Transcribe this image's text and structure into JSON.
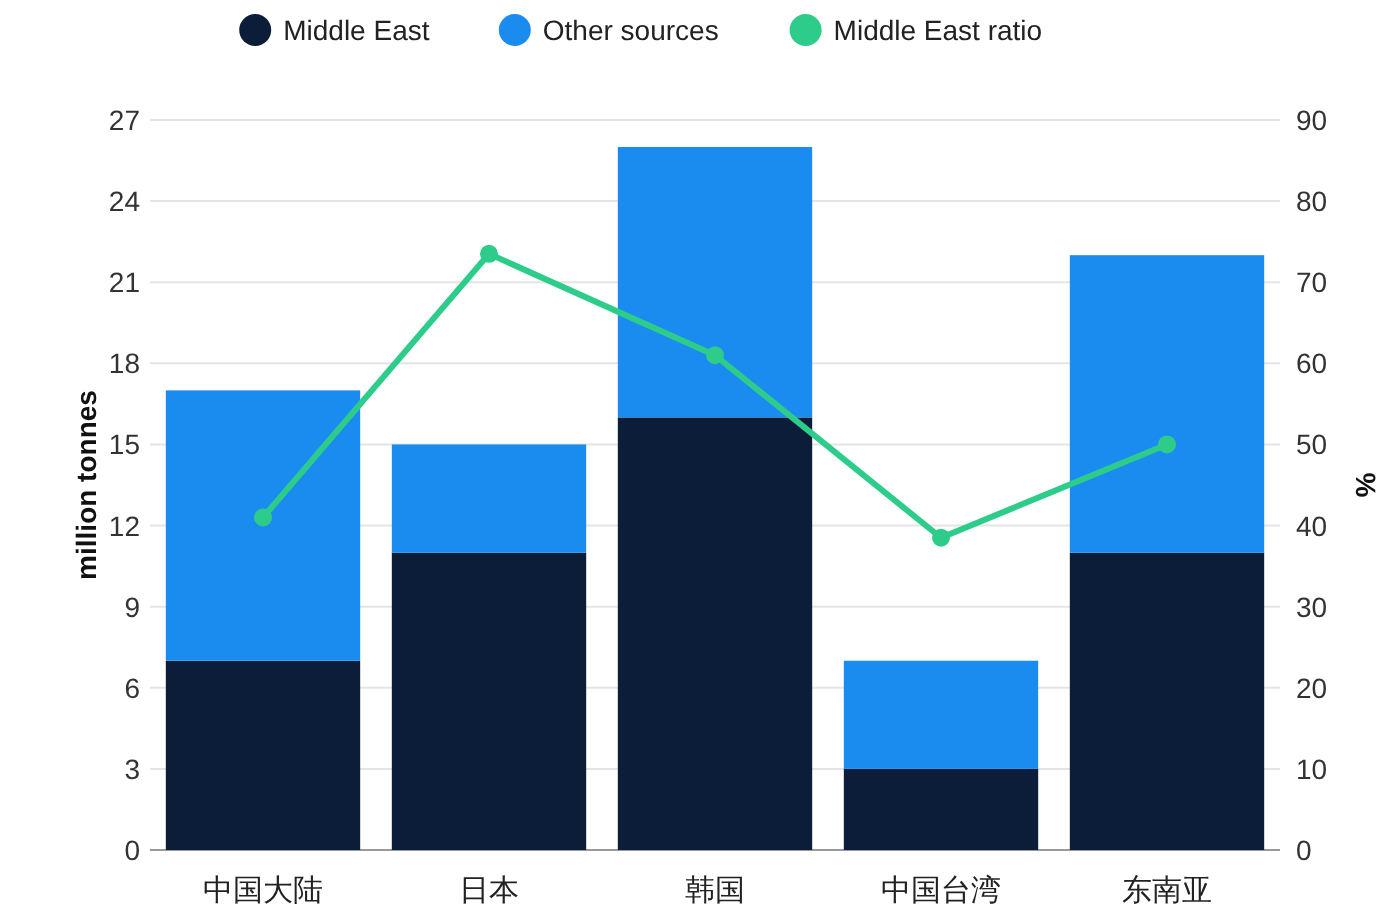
{
  "chart_data": {
    "type": "bar",
    "stacked": true,
    "categories": [
      "中国大陆",
      "日本",
      "韩国",
      "中国台湾",
      "东南亚"
    ],
    "series": [
      {
        "name": "Middle East",
        "color": "#0b1d38",
        "values": [
          7,
          11,
          16,
          3,
          11
        ]
      },
      {
        "name": "Other sources",
        "color": "#1a8cf0",
        "values": [
          10,
          4,
          10,
          4,
          11
        ]
      },
      {
        "name": "Middle East ratio",
        "type": "line",
        "axis": "y2",
        "color": "#2ecc8a",
        "marker": "circle",
        "values": [
          41,
          73.5,
          61,
          38.5,
          50
        ]
      }
    ],
    "ylabel": "million tonnes",
    "y2label": "%",
    "ylim": [
      0,
      27
    ],
    "yticks": [
      0,
      3,
      6,
      9,
      12,
      15,
      18,
      21,
      24,
      27
    ],
    "y2lim": [
      0,
      90
    ],
    "y2ticks": [
      0,
      10,
      20,
      30,
      40,
      50,
      60,
      70,
      80,
      90
    ],
    "grid": "y",
    "legend": "top"
  }
}
